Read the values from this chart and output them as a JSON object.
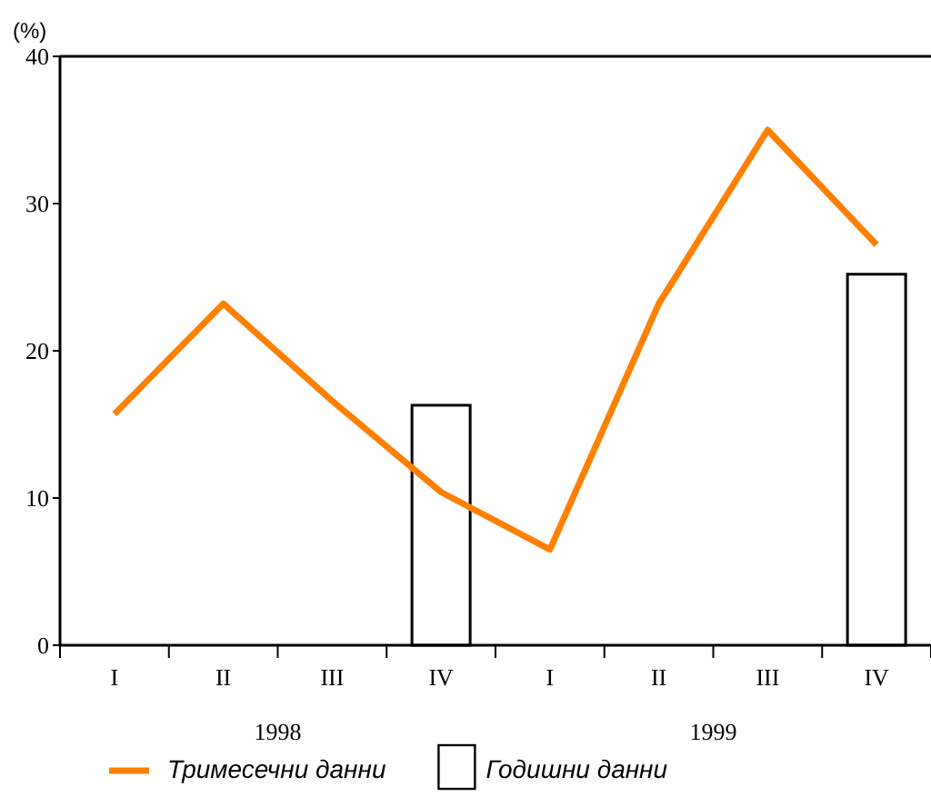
{
  "chart_data": {
    "type": "line",
    "ylabel": "(%)",
    "categories": [
      "I",
      "II",
      "III",
      "IV",
      "I",
      "II",
      "III",
      "IV"
    ],
    "series": [
      {
        "name": "Тримесечни данни",
        "color": "#ff8000",
        "values": [
          15.7,
          23.2,
          16.6,
          10.4,
          6.5,
          23.2,
          35.0,
          27.2
        ]
      },
      {
        "name": "Годишни данни",
        "type": "bar",
        "color": "#000000",
        "values": [
          null,
          null,
          null,
          16.3,
          null,
          null,
          null,
          25.2
        ]
      }
    ],
    "ylim": [
      0,
      40
    ],
    "yticks": [
      0,
      10,
      20,
      30,
      40
    ],
    "grid": false,
    "legend": "bottom",
    "marker": "none",
    "line_style": "solid",
    "annotations": [
      "1998",
      "1999"
    ]
  }
}
